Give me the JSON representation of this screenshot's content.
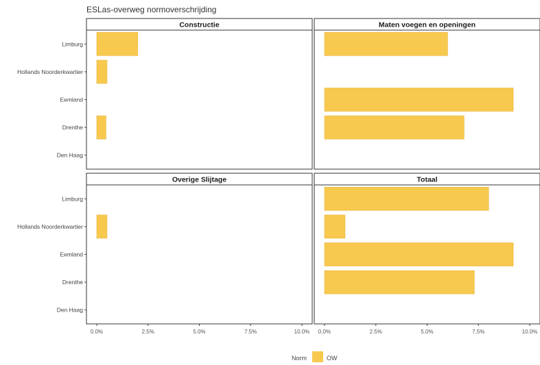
{
  "chart_data": {
    "type": "bar",
    "orientation": "horizontal",
    "title": "ESLas-overweg normoverschrijding",
    "categories": [
      "Limburg",
      "Hollands Noorderkwartier",
      "Eemland",
      "Drenthe",
      "Den Haag"
    ],
    "x_ticks": [
      "0.0%",
      "2.5%",
      "5.0%",
      "7.5%",
      "10.0%"
    ],
    "xlim": [
      0,
      10
    ],
    "grid": false,
    "bar_color": "#f8c94f",
    "legend": {
      "position": "bottom",
      "title": "Norm",
      "entries": [
        {
          "label": "OW",
          "color": "#f8c94f"
        }
      ]
    },
    "panels": [
      {
        "name": "Constructie",
        "values": [
          2.0,
          0.5,
          0,
          0.45,
          0
        ]
      },
      {
        "name": "Maten voegen en openingen",
        "values": [
          6.0,
          0,
          9.2,
          6.8,
          0
        ]
      },
      {
        "name": "Overige Slijtage",
        "values": [
          0,
          0.5,
          0,
          0,
          0
        ]
      },
      {
        "name": "Totaal",
        "values": [
          8.0,
          1.0,
          9.2,
          7.3,
          0
        ]
      }
    ]
  }
}
